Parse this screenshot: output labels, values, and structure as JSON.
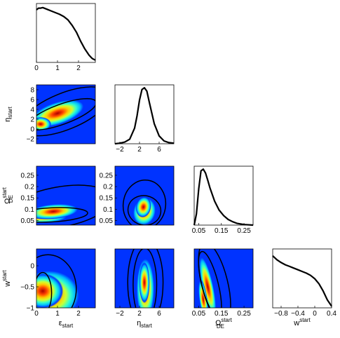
{
  "chart_data": {
    "type": "triangle-corner-plot",
    "parameters": [
      {
        "symbol": "ε",
        "sub": "start",
        "sup": ""
      },
      {
        "symbol": "η",
        "sub": "start",
        "sup": ""
      },
      {
        "symbol": "Ω",
        "sub": "DE",
        "sup": "start"
      },
      {
        "symbol": "w",
        "sub": "",
        "sup": "start"
      }
    ],
    "ranges": [
      [
        0,
        2.8
      ],
      [
        -3,
        9
      ],
      [
        0.03,
        0.29
      ],
      [
        -1,
        0.4
      ]
    ],
    "ticks": [
      {
        "values": [
          0,
          1,
          2
        ],
        "labels": [
          "0",
          "1",
          "2"
        ]
      },
      {
        "values": [
          -2,
          2,
          6
        ],
        "labels": [
          "−2",
          "2",
          "6"
        ]
      },
      {
        "values": [
          0.05,
          0.15,
          0.25
        ],
        "labels": [
          "0.05",
          "0.15",
          "0.25"
        ]
      },
      {
        "values": [
          -0.8,
          -0.4,
          0,
          0.4
        ],
        "labels": [
          "−0.8",
          "−0.4",
          "0",
          "0.4"
        ]
      }
    ],
    "ticks_as_y": [
      null,
      {
        "values": [
          -2,
          0,
          2,
          4,
          6,
          8
        ],
        "labels": [
          "−2",
          "0",
          "2",
          "4",
          "6",
          "8"
        ]
      },
      {
        "values": [
          0.05,
          0.1,
          0.15,
          0.2,
          0.25
        ],
        "labels": [
          "0.05",
          "0.1",
          "0.15",
          "0.2",
          "0.25"
        ]
      },
      {
        "values": [
          -1,
          -0.5,
          0
        ],
        "labels": [
          "−1",
          "−0.5",
          "0"
        ]
      }
    ],
    "marginals": [
      {
        "x": [
          0,
          0.1,
          0.2,
          0.3,
          0.5,
          0.7,
          0.9,
          1.1,
          1.3,
          1.5,
          1.7,
          1.9,
          2.1,
          2.3,
          2.5,
          2.65,
          2.8
        ],
        "y": [
          0.94,
          0.97,
          0.97,
          0.98,
          0.95,
          0.92,
          0.89,
          0.86,
          0.82,
          0.76,
          0.66,
          0.54,
          0.38,
          0.24,
          0.13,
          0.07,
          0.04
        ]
      },
      {
        "x": [
          -3,
          -2,
          -1,
          0,
          1,
          1.5,
          2,
          2.5,
          3,
          3.5,
          4,
          5,
          6,
          7,
          8,
          9
        ],
        "y": [
          0.0,
          0.01,
          0.03,
          0.08,
          0.28,
          0.5,
          0.78,
          0.97,
          1.0,
          0.94,
          0.74,
          0.36,
          0.14,
          0.05,
          0.02,
          0.01
        ]
      },
      {
        "x": [
          0.03,
          0.04,
          0.05,
          0.06,
          0.07,
          0.08,
          0.09,
          0.1,
          0.12,
          0.14,
          0.16,
          0.18,
          0.2,
          0.22,
          0.25,
          0.29
        ],
        "y": [
          0.0,
          0.2,
          0.65,
          0.97,
          1.0,
          0.93,
          0.8,
          0.66,
          0.43,
          0.27,
          0.17,
          0.1,
          0.06,
          0.03,
          0.01,
          0.0
        ]
      },
      {
        "x": [
          -1,
          -0.9,
          -0.8,
          -0.7,
          -0.6,
          -0.5,
          -0.4,
          -0.3,
          -0.2,
          -0.1,
          0,
          0.1,
          0.2,
          0.3,
          0.4
        ],
        "y": [
          0.93,
          0.86,
          0.81,
          0.77,
          0.74,
          0.71,
          0.68,
          0.65,
          0.62,
          0.58,
          0.52,
          0.43,
          0.3,
          0.14,
          0.03
        ]
      }
    ],
    "density_colormap": [
      "#0000aa",
      "#0033ff",
      "#00bbff",
      "#33ffcc",
      "#ccff33",
      "#ffcc00",
      "#ff4400",
      "#aa0000"
    ],
    "contour_color": "#000000"
  }
}
